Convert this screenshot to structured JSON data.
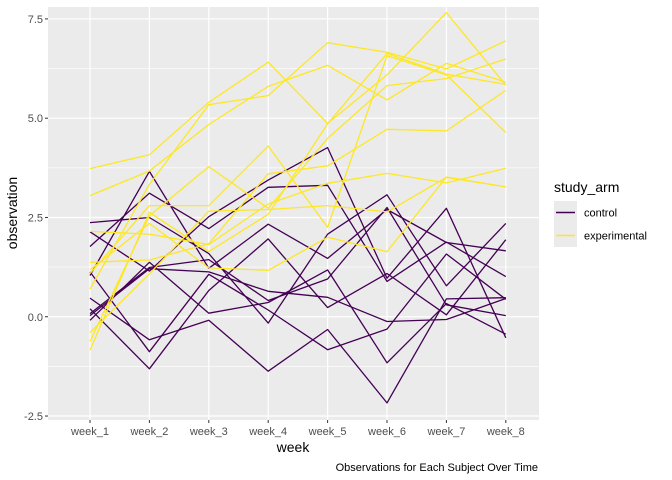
{
  "chart_data": {
    "type": "line",
    "categories": [
      "week_1",
      "week_2",
      "week_3",
      "week_4",
      "week_5",
      "week_6",
      "week_7",
      "week_8"
    ],
    "xlabel": "week",
    "ylabel": "observation",
    "caption": "Observations for Each Subject Over Time",
    "ylim": [
      -2.6,
      7.8
    ],
    "yticks": [
      -2.5,
      0.0,
      2.5,
      5.0,
      7.5
    ],
    "ytick_labels": [
      "-2.5",
      "0.0",
      "2.5",
      "5.0",
      "7.5"
    ],
    "grid": true,
    "legend": {
      "title": "study_arm",
      "position": "right",
      "entries": [
        {
          "label": "control",
          "color": "#440154"
        },
        {
          "label": "experimental",
          "color": "#fde725"
        }
      ]
    },
    "series": [
      {
        "group": "control",
        "values": [
          0.2,
          -1.31,
          0.66,
          1.96,
          0.23,
          1.09,
          0.05,
          1.94
        ]
      },
      {
        "group": "control",
        "values": [
          1.13,
          -0.88,
          1.07,
          0.17,
          -0.83,
          -0.31,
          1.58,
          0.44
        ]
      },
      {
        "group": "control",
        "values": [
          1.77,
          3.11,
          2.22,
          3.26,
          3.31,
          0.89,
          1.88,
          1.01
        ]
      },
      {
        "group": "control",
        "values": [
          1.04,
          3.66,
          1.22,
          2.33,
          1.47,
          2.7,
          1.87,
          1.66
        ]
      },
      {
        "group": "control",
        "values": [
          0.47,
          -0.58,
          -0.09,
          -1.37,
          -0.32,
          -2.17,
          0.45,
          0.48
        ]
      },
      {
        "group": "control",
        "values": [
          2.37,
          2.5,
          1.59,
          -0.16,
          2.08,
          3.07,
          0.78,
          2.35
        ]
      },
      {
        "group": "control",
        "values": [
          0.03,
          1.21,
          1.13,
          0.64,
          0.49,
          -0.12,
          -0.07,
          0.46
        ]
      },
      {
        "group": "control",
        "values": [
          -0.09,
          1.37,
          0.09,
          0.36,
          1.18,
          -1.16,
          0.33,
          -0.44
        ]
      },
      {
        "group": "control",
        "values": [
          0.08,
          1.24,
          1.44,
          0.41,
          0.95,
          2.75,
          0.3,
          0.03
        ]
      },
      {
        "group": "control",
        "values": [
          2.14,
          1.15,
          2.52,
          3.44,
          4.26,
          0.97,
          2.73,
          -0.53
        ]
      },
      {
        "group": "experimental",
        "values": [
          3.05,
          3.67,
          4.84,
          5.8,
          6.33,
          5.46,
          6.38,
          5.91
        ]
      },
      {
        "group": "experimental",
        "values": [
          -0.84,
          2.63,
          1.64,
          2.58,
          4.86,
          6.63,
          6.11,
          5.85
        ]
      },
      {
        "group": "experimental",
        "values": [
          2.15,
          2.08,
          1.82,
          2.84,
          3.36,
          3.61,
          3.37,
          3.74
        ]
      },
      {
        "group": "experimental",
        "values": [
          -0.62,
          2.54,
          3.78,
          2.73,
          4.49,
          5.82,
          6.0,
          6.49
        ]
      },
      {
        "group": "experimental",
        "values": [
          0.7,
          3.33,
          5.34,
          5.57,
          6.9,
          6.66,
          6.24,
          6.95
        ]
      },
      {
        "group": "experimental",
        "values": [
          3.73,
          4.08,
          5.4,
          6.41,
          4.87,
          6.09,
          7.66,
          5.83
        ]
      },
      {
        "group": "experimental",
        "values": [
          1.18,
          2.35,
          1.23,
          1.17,
          2.0,
          1.64,
          3.52,
          3.27
        ]
      },
      {
        "group": "experimental",
        "values": [
          1.37,
          1.43,
          1.84,
          3.6,
          3.8,
          4.72,
          4.68,
          5.7
        ]
      },
      {
        "group": "experimental",
        "values": [
          -0.4,
          1.08,
          2.66,
          2.7,
          2.8,
          2.64,
          3.51,
          3.27
        ]
      },
      {
        "group": "experimental",
        "values": [
          1.09,
          2.8,
          2.8,
          4.3,
          2.25,
          6.57,
          6.09,
          4.64
        ]
      }
    ]
  }
}
